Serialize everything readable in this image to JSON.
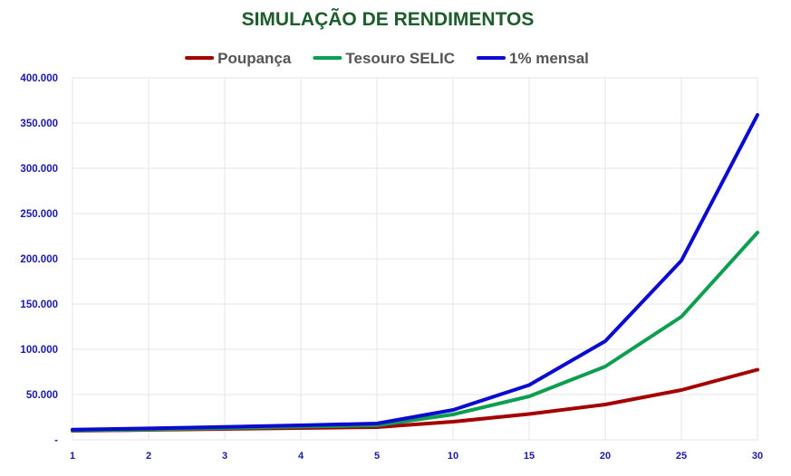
{
  "chart_data": {
    "type": "line",
    "title": "SIMULAÇÃO DE RENDIMENTOS",
    "xlabel": "",
    "ylabel": "",
    "x": [
      "1",
      "2",
      "3",
      "4",
      "5",
      "10",
      "15",
      "20",
      "25",
      "30"
    ],
    "ylim": [
      0,
      400000
    ],
    "y_ticks": [
      {
        "value": 0,
        "label": "-"
      },
      {
        "value": 50000,
        "label": "50.000"
      },
      {
        "value": 100000,
        "label": "100.000"
      },
      {
        "value": 150000,
        "label": "150.000"
      },
      {
        "value": 200000,
        "label": "200.000"
      },
      {
        "value": 250000,
        "label": "250.000"
      },
      {
        "value": 300000,
        "label": "300.000"
      },
      {
        "value": 350000,
        "label": "350.000"
      },
      {
        "value": 400000,
        "label": "400.000"
      }
    ],
    "grid": true,
    "legend_position": "top",
    "series": [
      {
        "name": "Poupança",
        "color": "#a50000",
        "values": [
          10000,
          11000,
          12000,
          13000,
          14000,
          20000,
          28500,
          39000,
          55000,
          77500
        ]
      },
      {
        "name": "Tesouro SELIC",
        "color": "#0e9e4f",
        "values": [
          10500,
          11500,
          13000,
          14500,
          16000,
          28000,
          48000,
          81000,
          136000,
          229000
        ]
      },
      {
        "name": "1% mensal",
        "color": "#0a0ad0",
        "values": [
          11300,
          12600,
          14200,
          16000,
          18000,
          33000,
          60500,
          109000,
          198000,
          359000
        ]
      }
    ],
    "colors": {
      "title": "#1e5c2c",
      "axis_labels": "#1a1aa6",
      "legend_text": "#555555",
      "grid": "#e6e6e6"
    }
  }
}
